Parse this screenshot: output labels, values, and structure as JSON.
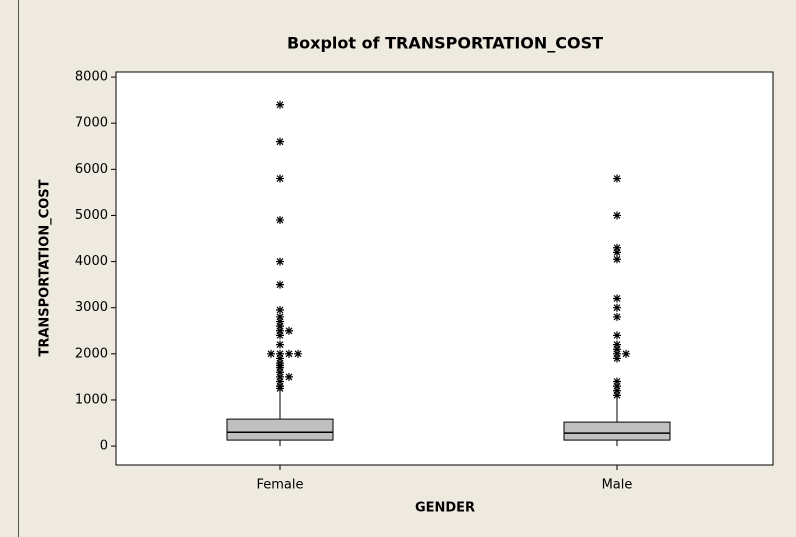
{
  "chart_data": {
    "type": "box",
    "title": "Boxplot of TRANSPORTATION_COST",
    "xlabel": "GENDER",
    "ylabel": "TRANSPORTATION_COST",
    "categories": [
      "Female",
      "Male"
    ],
    "color": "#c0c0c0",
    "boxes": [
      {
        "whisker_low": 0,
        "q1": 130,
        "median": 300,
        "q3": 585,
        "whisker_high": 1190,
        "outliers": [
          7400,
          6600,
          5800,
          4900,
          4000,
          3500,
          2950,
          2800,
          2700,
          2600,
          2500,
          2500,
          2400,
          2200,
          2000,
          2000,
          2000,
          2000,
          1900,
          1800,
          1750,
          1700,
          1600,
          1500,
          1500,
          1400,
          1300,
          1250
        ]
      },
      {
        "whisker_low": 0,
        "q1": 130,
        "median": 280,
        "q3": 520,
        "whisker_high": 1100,
        "outliers": [
          5800,
          5000,
          4300,
          4200,
          4050,
          3200,
          3000,
          2800,
          2400,
          2200,
          2100,
          2000,
          2000,
          1900,
          1400,
          1300,
          1200,
          1100
        ]
      }
    ],
    "ylim": [
      -410,
      8110
    ],
    "yticks": [
      0,
      1000,
      2000,
      3000,
      4000,
      5000,
      6000,
      7000,
      8000
    ]
  }
}
